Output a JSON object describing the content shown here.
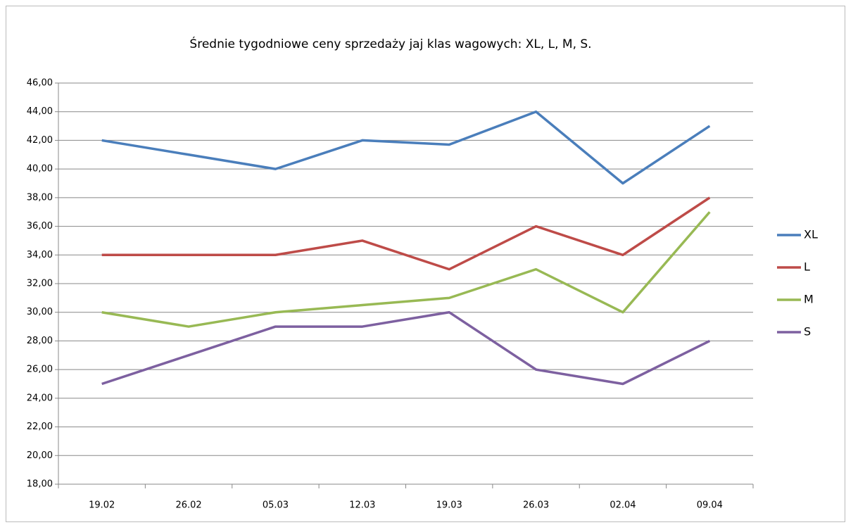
{
  "chart_data": {
    "type": "line",
    "title": "Średnie tygodniowe ceny sprzedaży jaj klas wagowych: XL, L, M, S.",
    "categories": [
      "19.02",
      "26.02",
      "05.03",
      "12.03",
      "19.03",
      "26.03",
      "02.04",
      "09.04"
    ],
    "series": [
      {
        "name": "XL",
        "color": "#4a7ebb",
        "values": [
          42,
          41,
          40,
          42,
          41.7,
          44,
          39,
          43
        ]
      },
      {
        "name": "L",
        "color": "#be4b48",
        "values": [
          34,
          34,
          34,
          35,
          33,
          36,
          34,
          38
        ]
      },
      {
        "name": "M",
        "color": "#98b954",
        "values": [
          30,
          29,
          30,
          30.5,
          31,
          33,
          30,
          37
        ]
      },
      {
        "name": "S",
        "color": "#7d60a0",
        "values": [
          25,
          27,
          29,
          29,
          30,
          26,
          25,
          28
        ]
      }
    ],
    "ylim": [
      18,
      46
    ],
    "yticks": [
      {
        "value": 18,
        "label": "18,00"
      },
      {
        "value": 20,
        "label": "20,00"
      },
      {
        "value": 22,
        "label": "22,00"
      },
      {
        "value": 24,
        "label": "24,00"
      },
      {
        "value": 26,
        "label": "26,00"
      },
      {
        "value": 28,
        "label": "28,00"
      },
      {
        "value": 30,
        "label": "30,00"
      },
      {
        "value": 32,
        "label": "32,00"
      },
      {
        "value": 34,
        "label": "34,00"
      },
      {
        "value": 36,
        "label": "36,00"
      },
      {
        "value": 38,
        "label": "38,00"
      },
      {
        "value": 40,
        "label": "40,00"
      },
      {
        "value": 42,
        "label": "42,00"
      },
      {
        "value": 44,
        "label": "44,00"
      },
      {
        "value": 46,
        "label": "46,00"
      }
    ],
    "grid": true,
    "legend": "right"
  }
}
